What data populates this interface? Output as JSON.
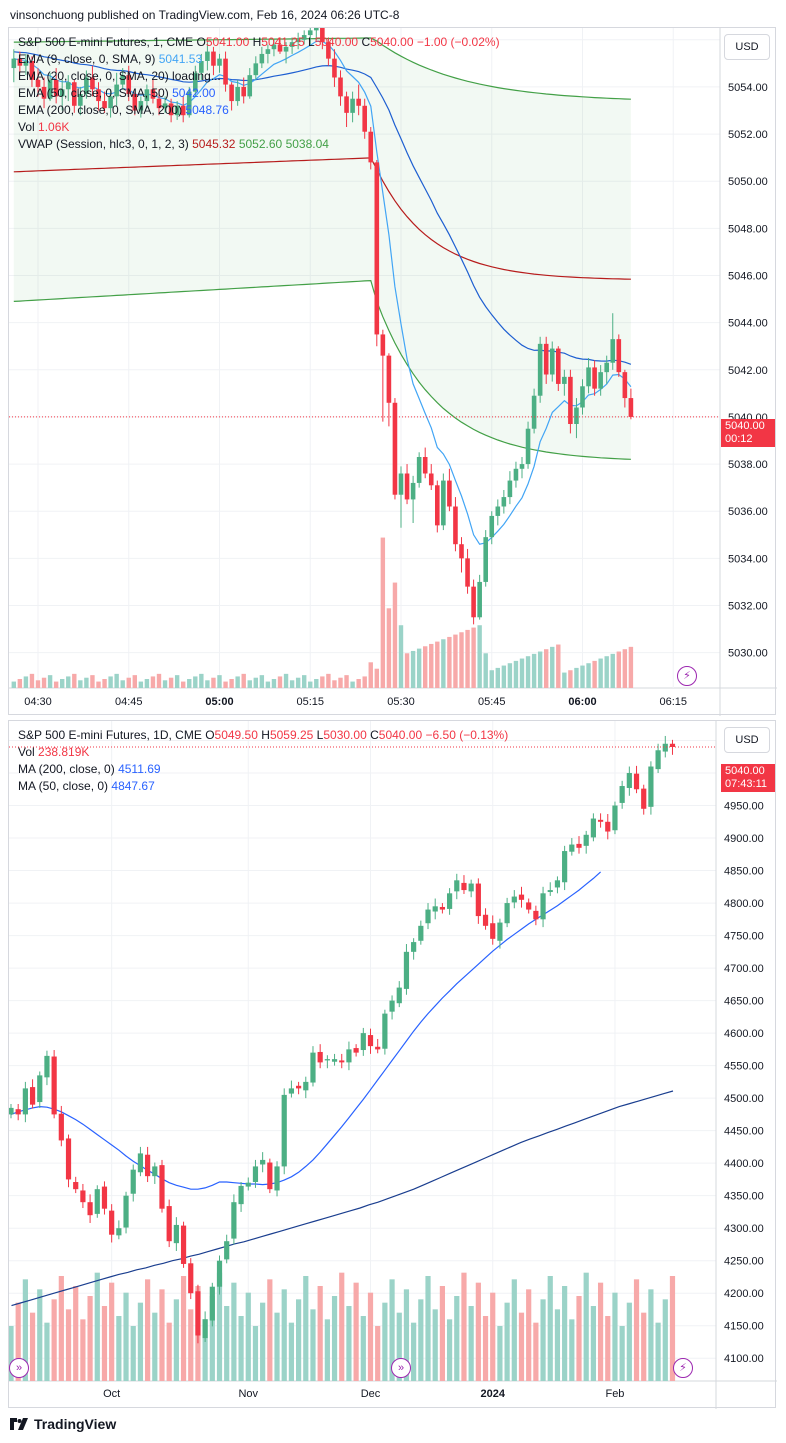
{
  "header": {
    "text": "vinsonchuong published on TradingView.com, Feb 16, 2024 06:26 UTC-8"
  },
  "footer": {
    "brand": "TradingView"
  },
  "panel1": {
    "currency": "USD",
    "legend": {
      "symbol": "S&P 500 E-mini Futures, 1, CME",
      "open_label": "O",
      "open": "5041.00",
      "high_label": "H",
      "high": "5041.25",
      "low_label": "L",
      "low": "5040.00",
      "close_label": "C",
      "close": "5040.00",
      "change": "−1.00 (−0.02%)",
      "ema9": "EMA (9, close, 0, SMA, 9)",
      "ema9_val": "5041.53",
      "ema20": "EMA (20, close, 0, SMA, 20) loading...",
      "ema50": "EMA (50, close, 0, SMA, 50)",
      "ema50_val": "5042.00",
      "ema200": "EMA (200, close, 0, SMA, 200)",
      "ema200_val": "5048.76",
      "vol": "Vol",
      "vol_val": "1.06K",
      "vwap": "VWAP (Session, hlc3, 0, 1, 2, 3)",
      "vwap_val": "5045.32",
      "vwap_up": "5052.60",
      "vwap_dn": "5038.04"
    },
    "price_label": "5040.00",
    "countdown": "00:12"
  },
  "panel2": {
    "currency": "USD",
    "legend": {
      "symbol": "S&P 500 E-mini Futures, 1D, CME",
      "open_label": "O",
      "open": "5049.50",
      "high_label": "H",
      "high": "5059.25",
      "low_label": "L",
      "low": "5030.00",
      "close_label": "C",
      "close": "5040.00",
      "change": "−6.50 (−0.13%)",
      "vol": "Vol",
      "vol_val": "238.819K",
      "ma200": "MA (200, close, 0)",
      "ma200_val": "4511.69",
      "ma50": "MA (50, close, 0)",
      "ma50_val": "4847.67"
    },
    "price_label": "5040.00",
    "countdown": "07:43:11"
  },
  "colors": {
    "up": "#4caf84",
    "down": "#f23645",
    "up_vol": "#9bd3c8",
    "down_vol": "#f7a9a9",
    "ema9": "#42a5f5",
    "ema50": "#1e5fd1",
    "ema200": "#b71c1c",
    "vwap_band": "#43a047",
    "ma50": "#2962ff",
    "ma200": "#1a3e8f"
  },
  "chart_data": [
    {
      "type": "candlestick",
      "title": "S&P 500 E-mini Futures, 1, CME",
      "x_ticks": [
        "04:30",
        "04:45",
        "05:00",
        "05:15",
        "05:30",
        "05:45",
        "06:00",
        "06:15"
      ],
      "bold_ticks": [
        "05:00",
        "06:00"
      ],
      "y_ticks": [
        5030,
        5032,
        5034,
        5036,
        5038,
        5040,
        5042,
        5044,
        5046,
        5048,
        5050,
        5052,
        5054,
        5056
      ],
      "ylim": [
        5028.5,
        5056.5
      ],
      "start": "04:30",
      "candles": [
        [
          "04:26",
          5054.8,
          5055.6,
          5054.2,
          5055.2
        ],
        [
          "04:27",
          5055.2,
          5055.5,
          5054.6,
          5054.9
        ],
        [
          "04:28",
          5054.9,
          5055.4,
          5054.5,
          5055.1
        ],
        [
          "04:29",
          5055.1,
          5055.3,
          5054.0,
          5054.3
        ],
        [
          "04:30",
          5054.3,
          5054.8,
          5053.6,
          5054.0
        ],
        [
          "04:31",
          5054.0,
          5054.4,
          5053.1,
          5053.5
        ],
        [
          "04:32",
          5053.5,
          5054.6,
          5053.4,
          5054.3
        ],
        [
          "04:33",
          5054.3,
          5054.8,
          5053.3,
          5053.6
        ],
        [
          "04:34",
          5053.6,
          5054.3,
          5053.0,
          5053.9
        ],
        [
          "04:35",
          5053.9,
          5054.5,
          5053.4,
          5054.2
        ],
        [
          "04:36",
          5054.2,
          5054.3,
          5052.9,
          5053.2
        ],
        [
          "04:37",
          5053.2,
          5054.0,
          5052.8,
          5053.7
        ],
        [
          "04:38",
          5053.7,
          5054.7,
          5053.5,
          5054.4
        ],
        [
          "04:39",
          5054.4,
          5054.9,
          5053.6,
          5053.9
        ],
        [
          "04:40",
          5053.9,
          5054.2,
          5053.0,
          5053.4
        ],
        [
          "04:41",
          5053.4,
          5053.8,
          5052.9,
          5053.1
        ],
        [
          "04:42",
          5053.1,
          5053.9,
          5052.7,
          5053.6
        ],
        [
          "04:43",
          5053.6,
          5054.6,
          5053.2,
          5054.1
        ],
        [
          "04:44",
          5054.1,
          5054.8,
          5053.9,
          5054.5
        ],
        [
          "04:45",
          5054.5,
          5054.9,
          5053.4,
          5053.7
        ],
        [
          "04:46",
          5053.7,
          5053.8,
          5052.8,
          5053.0
        ],
        [
          "04:47",
          5053.0,
          5053.6,
          5052.7,
          5053.4
        ],
        [
          "04:48",
          5053.4,
          5054.1,
          5053.1,
          5053.9
        ],
        [
          "04:49",
          5053.9,
          5054.3,
          5053.3,
          5053.5
        ],
        [
          "04:50",
          5053.5,
          5053.9,
          5052.8,
          5053.1
        ],
        [
          "04:51",
          5053.1,
          5053.6,
          5052.9,
          5053.3
        ],
        [
          "04:52",
          5053.3,
          5053.5,
          5052.5,
          5052.8
        ],
        [
          "04:53",
          5052.8,
          5053.4,
          5052.6,
          5053.2
        ],
        [
          "04:54",
          5053.2,
          5053.6,
          5052.5,
          5052.8
        ],
        [
          "04:55",
          5052.8,
          5054.0,
          5052.7,
          5053.8
        ],
        [
          "04:56",
          5053.8,
          5054.9,
          5053.6,
          5054.6
        ],
        [
          "04:57",
          5054.6,
          5055.4,
          5054.3,
          5055.1
        ],
        [
          "04:58",
          5055.1,
          5055.9,
          5054.7,
          5055.5
        ],
        [
          "04:59",
          5055.5,
          5055.7,
          5054.5,
          5054.9
        ],
        [
          "05:00",
          5054.9,
          5055.4,
          5054.6,
          5055.2
        ],
        [
          "05:01",
          5055.2,
          5055.5,
          5053.8,
          5054.1
        ],
        [
          "05:02",
          5054.1,
          5054.2,
          5053.0,
          5053.4
        ],
        [
          "05:03",
          5053.4,
          5054.3,
          5053.2,
          5054.0
        ],
        [
          "05:04",
          5054.0,
          5054.4,
          5053.3,
          5053.6
        ],
        [
          "05:05",
          5053.6,
          5054.8,
          5053.5,
          5054.5
        ],
        [
          "05:06",
          5054.5,
          5055.3,
          5054.3,
          5055.0
        ],
        [
          "05:07",
          5055.0,
          5055.7,
          5054.8,
          5055.4
        ],
        [
          "05:08",
          5055.4,
          5055.8,
          5055.0,
          5055.6
        ],
        [
          "05:09",
          5055.6,
          5056.0,
          5055.3,
          5055.8
        ],
        [
          "05:10",
          5055.8,
          5056.1,
          5055.4,
          5055.5
        ],
        [
          "05:11",
          5055.5,
          5055.9,
          5055.0,
          5055.7
        ],
        [
          "05:12",
          5055.7,
          5056.1,
          5055.4,
          5055.9
        ],
        [
          "05:13",
          5055.9,
          5056.3,
          5055.6,
          5056.0
        ],
        [
          "05:14",
          5056.0,
          5056.4,
          5055.8,
          5056.2
        ],
        [
          "05:15",
          5056.2,
          5056.6,
          5055.8,
          5056.4
        ],
        [
          "05:16",
          5056.4,
          5056.8,
          5056.0,
          5056.6
        ],
        [
          "05:17",
          5056.6,
          5056.7,
          5055.6,
          5055.9
        ],
        [
          "05:18",
          5055.9,
          5056.1,
          5054.9,
          5055.2
        ],
        [
          "05:19",
          5055.2,
          5055.6,
          5054.0,
          5054.4
        ],
        [
          "05:20",
          5054.4,
          5054.7,
          5053.2,
          5053.6
        ],
        [
          "05:21",
          5053.6,
          5053.8,
          5052.3,
          5052.9
        ],
        [
          "05:22",
          5052.9,
          5053.8,
          5052.5,
          5053.5
        ],
        [
          "05:23",
          5053.5,
          5054.1,
          5052.8,
          5053.2
        ],
        [
          "05:24",
          5053.2,
          5053.5,
          5051.8,
          5052.1
        ],
        [
          "05:25",
          5052.1,
          5052.3,
          5050.5,
          5050.8
        ],
        [
          "05:26",
          5050.8,
          5050.9,
          5043.0,
          5043.5
        ],
        [
          "05:27",
          5043.5,
          5043.7,
          5039.8,
          5042.6
        ],
        [
          "05:28",
          5042.6,
          5042.7,
          5039.6,
          5040.6
        ],
        [
          "05:29",
          5040.6,
          5040.8,
          5036.5,
          5036.7
        ],
        [
          "05:30",
          5036.7,
          5037.9,
          5035.3,
          5037.6
        ],
        [
          "05:31",
          5037.6,
          5038.0,
          5036.3,
          5036.5
        ],
        [
          "05:32",
          5036.5,
          5037.5,
          5035.5,
          5037.2
        ],
        [
          "05:33",
          5037.2,
          5038.5,
          5037.0,
          5038.3
        ],
        [
          "05:34",
          5038.3,
          5038.7,
          5037.4,
          5037.6
        ],
        [
          "05:35",
          5037.6,
          5038.0,
          5036.9,
          5037.1
        ],
        [
          "05:36",
          5037.1,
          5037.3,
          5035.1,
          5035.4
        ],
        [
          "05:37",
          5035.4,
          5037.6,
          5035.2,
          5037.3
        ],
        [
          "05:38",
          5037.3,
          5037.8,
          5036.0,
          5036.2
        ],
        [
          "05:39",
          5036.2,
          5036.6,
          5034.3,
          5034.6
        ],
        [
          "05:40",
          5034.6,
          5034.9,
          5033.4,
          5034.0
        ],
        [
          "05:41",
          5034.0,
          5034.4,
          5032.5,
          5032.8
        ],
        [
          "05:42",
          5032.8,
          5033.1,
          5031.2,
          5031.5
        ],
        [
          "05:43",
          5031.5,
          5033.3,
          5031.4,
          5033.0
        ],
        [
          "05:44",
          5033.0,
          5035.2,
          5032.8,
          5034.9
        ],
        [
          "05:45",
          5034.9,
          5036.0,
          5034.6,
          5035.8
        ],
        [
          "05:46",
          5035.8,
          5036.5,
          5035.4,
          5036.2
        ],
        [
          "05:47",
          5036.2,
          5036.9,
          5035.9,
          5036.6
        ],
        [
          "05:48",
          5036.6,
          5037.7,
          5036.3,
          5037.3
        ],
        [
          "05:49",
          5037.3,
          5038.1,
          5037.0,
          5037.8
        ],
        [
          "05:50",
          5037.8,
          5038.3,
          5037.4,
          5038.0
        ],
        [
          "05:51",
          5038.0,
          5039.8,
          5037.8,
          5039.5
        ],
        [
          "05:52",
          5039.5,
          5041.2,
          5039.3,
          5040.9
        ],
        [
          "05:53",
          5040.9,
          5043.4,
          5040.6,
          5043.1
        ],
        [
          "05:54",
          5043.1,
          5043.4,
          5041.4,
          5041.8
        ],
        [
          "05:55",
          5041.8,
          5043.2,
          5041.5,
          5042.9
        ],
        [
          "05:56",
          5042.9,
          5043.0,
          5041.1,
          5041.4
        ],
        [
          "05:57",
          5041.4,
          5042.0,
          5040.9,
          5041.7
        ],
        [
          "05:58",
          5041.7,
          5042.0,
          5039.3,
          5039.7
        ],
        [
          "05:59",
          5039.7,
          5040.8,
          5039.1,
          5040.4
        ],
        [
          "06:00",
          5040.4,
          5041.6,
          5040.1,
          5041.3
        ],
        [
          "06:01",
          5041.3,
          5042.5,
          5041.0,
          5042.1
        ],
        [
          "06:02",
          5042.1,
          5042.4,
          5040.9,
          5041.2
        ],
        [
          "06:03",
          5041.2,
          5042.2,
          5040.9,
          5041.9
        ],
        [
          "06:04",
          5041.9,
          5042.6,
          5041.4,
          5042.3
        ],
        [
          "06:05",
          5042.3,
          5044.4,
          5042.0,
          5043.3
        ],
        [
          "06:06",
          5043.3,
          5043.5,
          5041.7,
          5041.9
        ],
        [
          "06:07",
          5041.9,
          5042.0,
          5040.4,
          5040.8
        ],
        [
          "06:08",
          5040.8,
          5041.2,
          5039.9,
          5040.0
        ]
      ],
      "volume_max": 1.4,
      "overlays": [
        "EMA 9",
        "EMA 50",
        "EMA 200",
        "VWAP bands"
      ]
    },
    {
      "type": "candlestick",
      "title": "S&P 500 E-mini Futures, 1D, CME",
      "x_ticks": [
        "Oct",
        "Nov",
        "Dec",
        "2024",
        "Feb"
      ],
      "bold_ticks": [
        "2024"
      ],
      "y_ticks": [
        4100,
        4150,
        4200,
        4250,
        4300,
        4350,
        4400,
        4450,
        4500,
        4550,
        4600,
        4650,
        4700,
        4750,
        4800,
        4850,
        4900,
        4950,
        5000,
        5050
      ],
      "ylim": [
        4065,
        5080
      ],
      "closes": [
        4485,
        4475,
        4515,
        4490,
        4535,
        4565,
        4475,
        4435,
        4375,
        4360,
        4340,
        4320,
        4360,
        4330,
        4290,
        4300,
        4350,
        4390,
        4415,
        4380,
        4395,
        4330,
        4280,
        4305,
        4245,
        4200,
        4135,
        4160,
        4210,
        4250,
        4280,
        4340,
        4365,
        4370,
        4395,
        4405,
        4360,
        4395,
        4505,
        4515,
        4515,
        4525,
        4570,
        4555,
        4560,
        4560,
        4555,
        4575,
        4570,
        4600,
        4580,
        4575,
        4630,
        4650,
        4670,
        4725,
        4740,
        4765,
        4790,
        4795,
        4790,
        4815,
        4835,
        4820,
        4830,
        4780,
        4765,
        4745,
        4770,
        4800,
        4810,
        4805,
        4790,
        4775,
        4815,
        4820,
        4835,
        4880,
        4890,
        4885,
        4905,
        4930,
        4925,
        4910,
        4950,
        4980,
        5000,
        4975,
        4945,
        5010,
        5035,
        5045,
        5040
      ],
      "ma50": [
        4475,
        4479,
        4482,
        4485,
        4487,
        4486,
        4483,
        4479,
        4473,
        4467,
        4460,
        4452,
        4444,
        4436,
        4428,
        4420,
        4411,
        4403,
        4396,
        4389,
        4383,
        4376,
        4370,
        4366,
        4363,
        4360,
        4360,
        4362,
        4366,
        4371,
        4371,
        4370,
        4369,
        4368,
        4368,
        4367,
        4368,
        4370,
        4374,
        4379,
        4386,
        4395,
        4405,
        4417,
        4430,
        4443,
        4456,
        4470,
        4484,
        4498,
        4513,
        4528,
        4543,
        4558,
        4573,
        4588,
        4603,
        4617,
        4630,
        4642,
        4654,
        4665,
        4676,
        4686,
        4696,
        4706,
        4716,
        4726,
        4735,
        4744,
        4752,
        4760,
        4768,
        4775,
        4782,
        4789,
        4796,
        4804,
        4812,
        4820,
        4829,
        4838,
        4848
      ],
      "ma200": [
        4181,
        4185,
        4189,
        4193,
        4197,
        4201,
        4205,
        4209,
        4213,
        4217,
        4221,
        4225,
        4229,
        4232,
        4236,
        4239,
        4243,
        4246,
        4250,
        4253,
        4257,
        4260,
        4264,
        4268,
        4272,
        4276,
        4279,
        4283,
        4287,
        4291,
        4295,
        4299,
        4303,
        4307,
        4311,
        4315,
        4319,
        4323,
        4327,
        4331,
        4336,
        4340,
        4345,
        4350,
        4355,
        4360,
        4366,
        4372,
        4378,
        4384,
        4390,
        4396,
        4402,
        4408,
        4414,
        4420,
        4426,
        4432,
        4437,
        4442,
        4447,
        4452,
        4457,
        4462,
        4467,
        4472,
        4477,
        4482,
        4487,
        4491,
        4495,
        4499,
        4503,
        4507,
        4511
      ],
      "volume_max": 1.4,
      "overlays": [
        "MA 200",
        "MA 50"
      ]
    }
  ]
}
